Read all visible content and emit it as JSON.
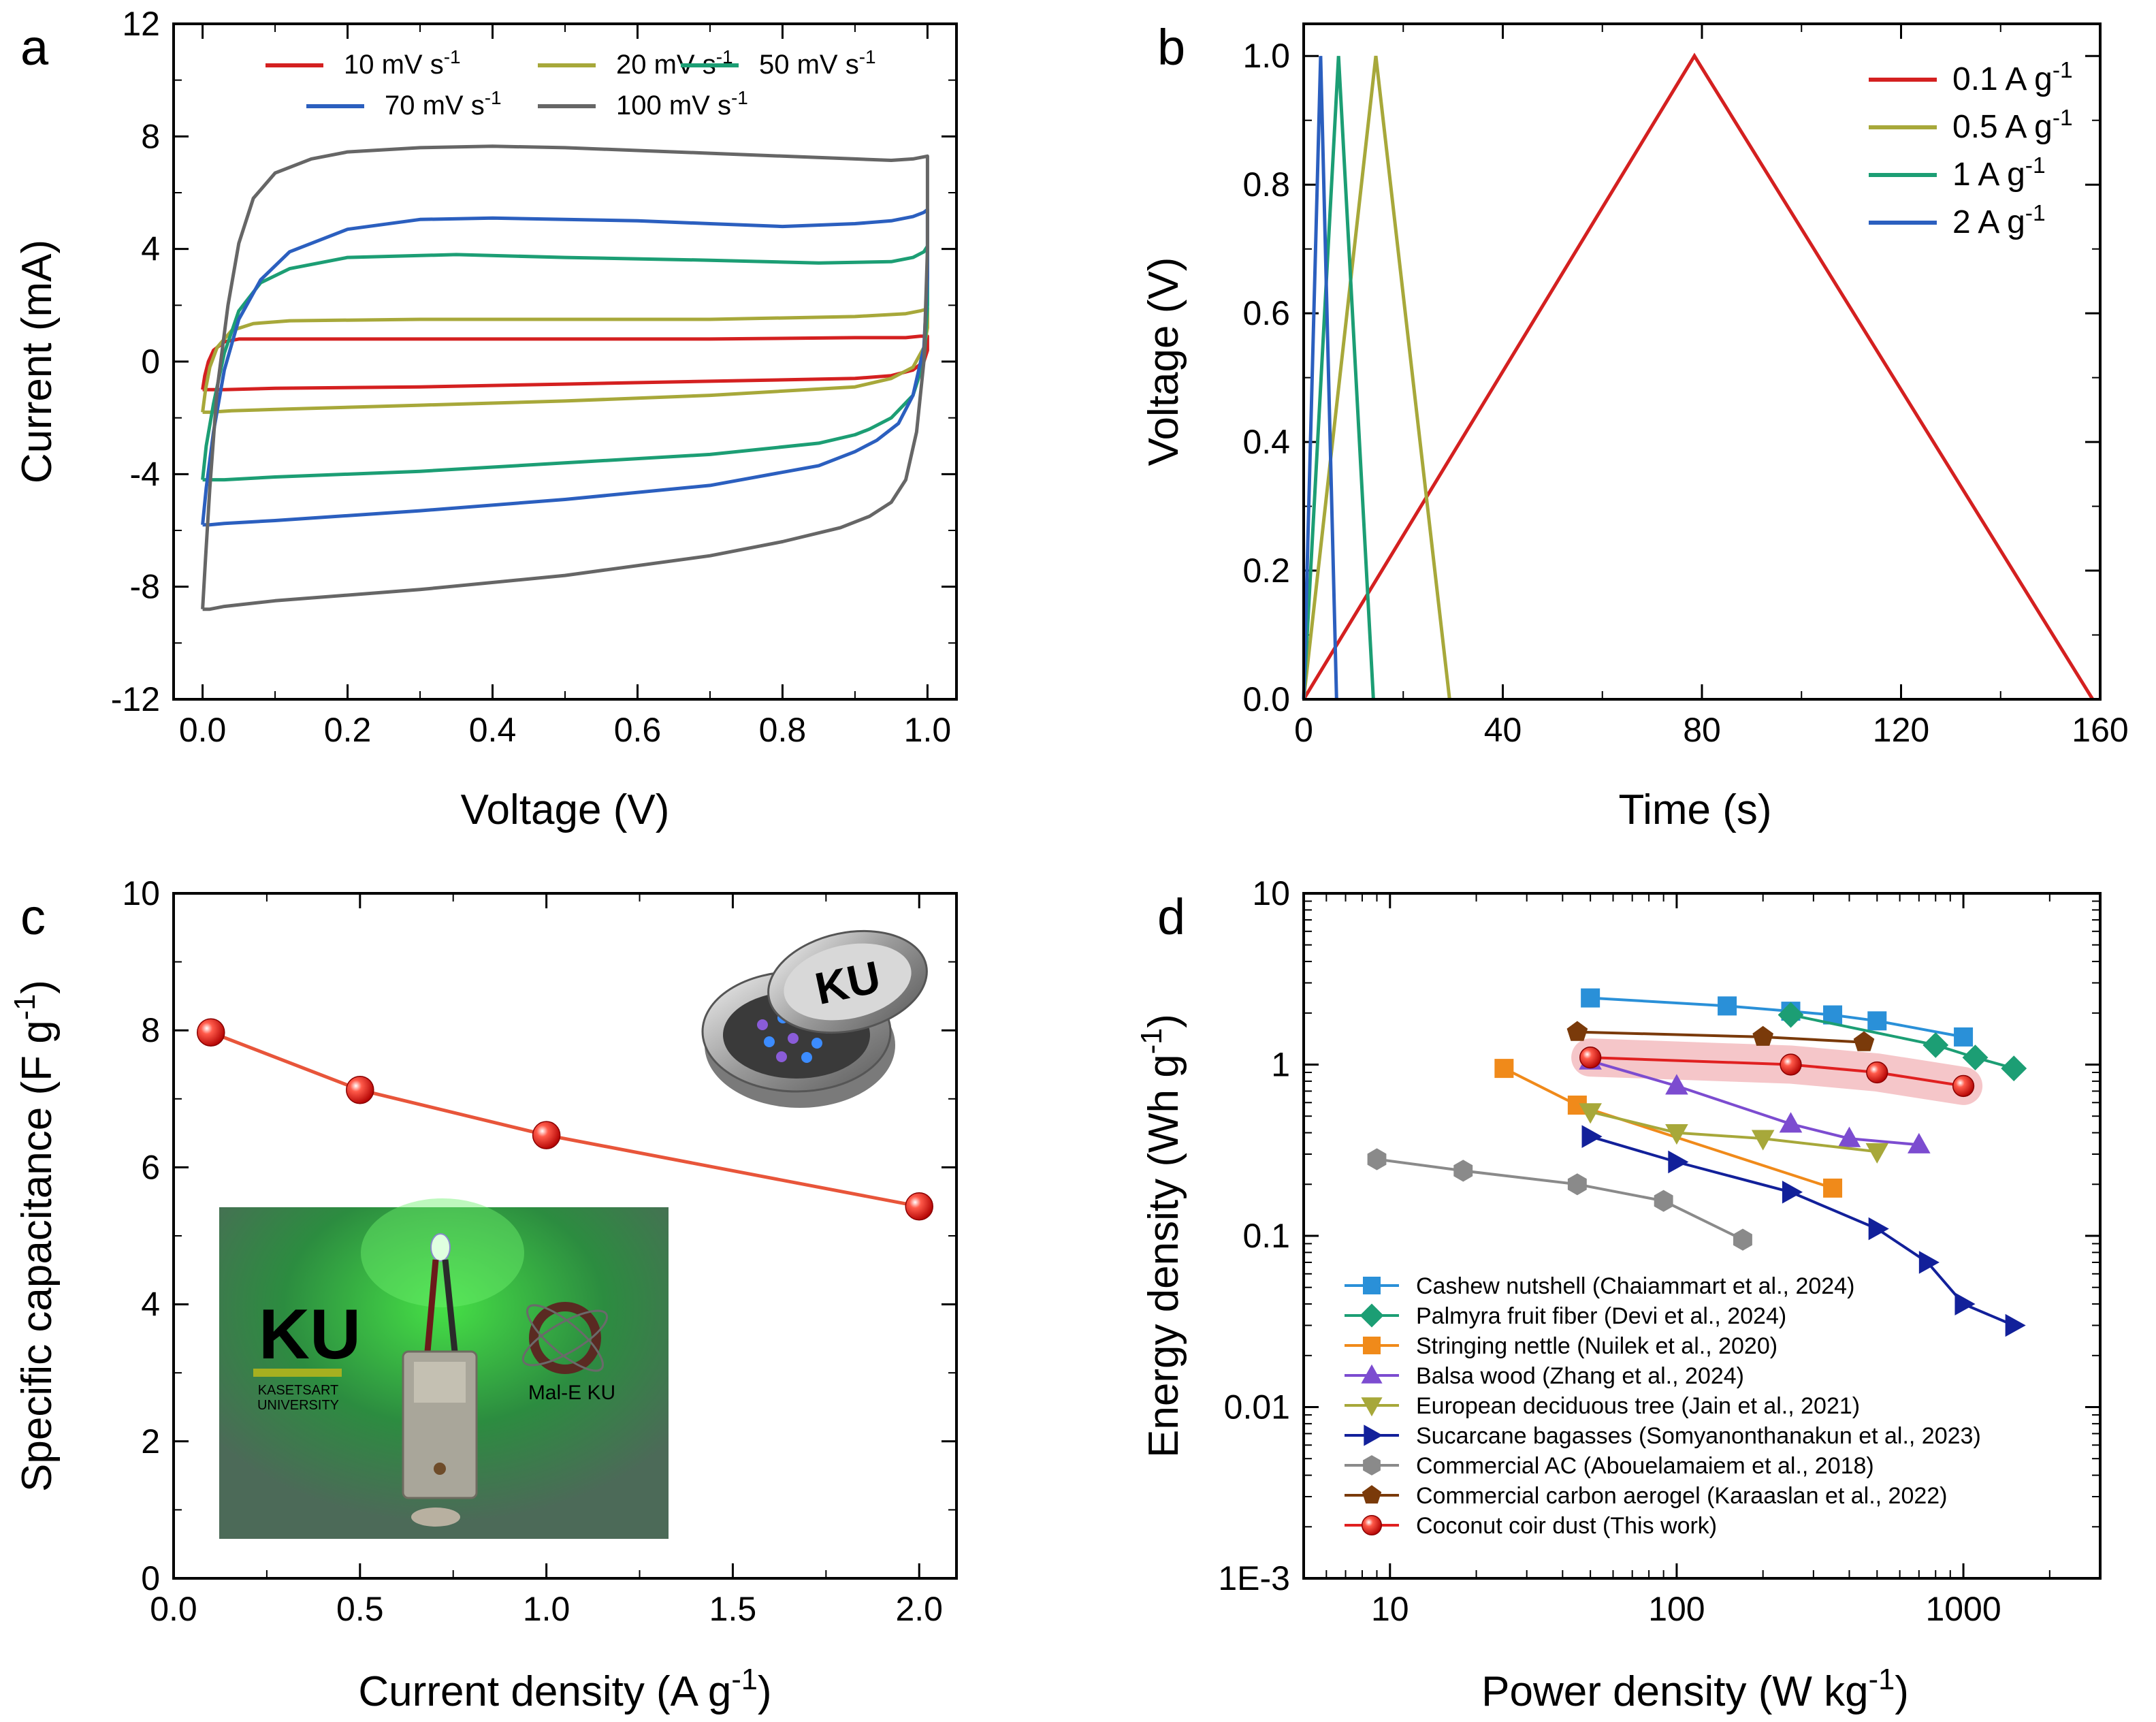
{
  "figure": {
    "panels": [
      "a",
      "b",
      "c",
      "d"
    ]
  },
  "chart_data": [
    {
      "id": "a",
      "type": "line",
      "panel_label": "a",
      "xlabel": "Voltage (V)",
      "ylabel": "Current (mA)",
      "xlim": [
        -0.04,
        1.04
      ],
      "ylim": [
        -12,
        12
      ],
      "xticks": [
        0.0,
        0.2,
        0.4,
        0.6,
        0.8,
        1.0
      ],
      "xtick_labels": [
        "0.0",
        "0.2",
        "0.4",
        "0.6",
        "0.8",
        "1.0"
      ],
      "yticks": [
        -12,
        -8,
        -4,
        0,
        4,
        8,
        12
      ],
      "ytick_labels": [
        "-12",
        "-8",
        "-4",
        "0",
        "4",
        "8",
        "12"
      ],
      "legend_position": "top",
      "series": [
        {
          "name": "10 mV s",
          "sup": "-1",
          "color": "#d42020",
          "x": [
            0.0,
            0.003,
            0.008,
            0.015,
            0.03,
            0.05,
            0.1,
            0.3,
            0.5,
            0.7,
            0.9,
            0.97,
            0.99,
            0.998,
            1.0,
            1.0,
            0.995,
            0.98,
            0.95,
            0.9,
            0.7,
            0.5,
            0.3,
            0.1,
            0.03,
            0.01,
            0.003,
            0.0,
            0.0
          ],
          "y": [
            -1.0,
            -0.5,
            0.0,
            0.4,
            0.7,
            0.8,
            0.8,
            0.8,
            0.8,
            0.8,
            0.85,
            0.85,
            0.9,
            0.9,
            0.9,
            0.4,
            0.0,
            -0.3,
            -0.5,
            -0.6,
            -0.7,
            -0.8,
            -0.9,
            -0.95,
            -1.0,
            -1.0,
            -1.0,
            -1.0,
            -1.0
          ]
        },
        {
          "name": "20 mV s",
          "sup": "-1",
          "color": "#a7a83a",
          "x": [
            0.0,
            0.004,
            0.01,
            0.02,
            0.04,
            0.07,
            0.12,
            0.3,
            0.5,
            0.7,
            0.9,
            0.97,
            0.99,
            0.997,
            1.0,
            1.0,
            0.995,
            0.98,
            0.95,
            0.9,
            0.7,
            0.5,
            0.3,
            0.1,
            0.04,
            0.01,
            0.003,
            0.0,
            0.0
          ],
          "y": [
            -1.8,
            -1.0,
            -0.2,
            0.5,
            1.1,
            1.35,
            1.45,
            1.5,
            1.5,
            1.5,
            1.6,
            1.7,
            1.8,
            1.85,
            1.9,
            1.2,
            0.5,
            -0.2,
            -0.6,
            -0.9,
            -1.2,
            -1.4,
            -1.55,
            -1.7,
            -1.75,
            -1.8,
            -1.8,
            -1.8,
            -1.8
          ]
        },
        {
          "name": "50 mV s",
          "sup": "-1",
          "color": "#1c9e74",
          "x": [
            0.0,
            0.005,
            0.015,
            0.03,
            0.05,
            0.08,
            0.12,
            0.2,
            0.35,
            0.5,
            0.7,
            0.85,
            0.95,
            0.98,
            0.995,
            1.0,
            1.0,
            0.995,
            0.98,
            0.95,
            0.92,
            0.9,
            0.85,
            0.7,
            0.5,
            0.3,
            0.1,
            0.03,
            0.01,
            0.0,
            0.0
          ],
          "y": [
            -4.2,
            -3.0,
            -1.5,
            0.3,
            1.8,
            2.8,
            3.3,
            3.7,
            3.8,
            3.7,
            3.6,
            3.5,
            3.55,
            3.7,
            3.9,
            4.1,
            2.0,
            0.0,
            -1.2,
            -2.0,
            -2.4,
            -2.6,
            -2.9,
            -3.3,
            -3.6,
            -3.9,
            -4.1,
            -4.2,
            -4.2,
            -4.2,
            -4.2
          ]
        },
        {
          "name": "70 mV s",
          "sup": "-1",
          "color": "#2b5fbf",
          "x": [
            0.0,
            0.005,
            0.015,
            0.03,
            0.05,
            0.08,
            0.12,
            0.2,
            0.3,
            0.4,
            0.5,
            0.6,
            0.7,
            0.8,
            0.9,
            0.95,
            0.98,
            0.995,
            1.0,
            1.0,
            0.995,
            0.98,
            0.96,
            0.93,
            0.9,
            0.85,
            0.7,
            0.5,
            0.3,
            0.1,
            0.03,
            0.01,
            0.0,
            0.0
          ],
          "y": [
            -5.8,
            -4.5,
            -2.5,
            -0.3,
            1.5,
            2.9,
            3.9,
            4.7,
            5.05,
            5.1,
            5.05,
            5.0,
            4.9,
            4.8,
            4.9,
            5.0,
            5.15,
            5.3,
            5.4,
            3.0,
            0.5,
            -1.2,
            -2.2,
            -2.8,
            -3.2,
            -3.7,
            -4.4,
            -4.9,
            -5.3,
            -5.65,
            -5.75,
            -5.8,
            -5.8,
            -5.8
          ]
        },
        {
          "name": "100 mV s",
          "sup": "-1",
          "color": "#666666",
          "x": [
            0.0,
            0.004,
            0.01,
            0.02,
            0.035,
            0.05,
            0.07,
            0.1,
            0.15,
            0.2,
            0.3,
            0.4,
            0.5,
            0.6,
            0.7,
            0.8,
            0.9,
            0.95,
            0.98,
            1.0,
            1.0,
            0.995,
            0.985,
            0.97,
            0.95,
            0.92,
            0.88,
            0.8,
            0.7,
            0.5,
            0.3,
            0.1,
            0.03,
            0.01,
            0.0,
            0.0
          ],
          "y": [
            -8.8,
            -7.0,
            -4.5,
            -1.0,
            2.0,
            4.2,
            5.8,
            6.7,
            7.2,
            7.45,
            7.6,
            7.65,
            7.6,
            7.5,
            7.4,
            7.3,
            7.2,
            7.15,
            7.2,
            7.3,
            4.0,
            0.0,
            -2.5,
            -4.2,
            -5.0,
            -5.5,
            -5.9,
            -6.4,
            -6.9,
            -7.6,
            -8.1,
            -8.5,
            -8.7,
            -8.8,
            -8.8,
            -8.8
          ]
        }
      ]
    },
    {
      "id": "b",
      "type": "line",
      "panel_label": "b",
      "xlabel": "Time (s)",
      "ylabel": "Voltage (V)",
      "xlim": [
        0,
        160
      ],
      "ylim": [
        0,
        1.05
      ],
      "xticks": [
        0,
        40,
        80,
        120,
        160
      ],
      "xtick_labels": [
        "0",
        "40",
        "80",
        "120",
        "160"
      ],
      "yticks": [
        0.0,
        0.2,
        0.4,
        0.6,
        0.8,
        1.0
      ],
      "ytick_labels": [
        "0.0",
        "0.2",
        "0.4",
        "0.6",
        "0.8",
        "1.0"
      ],
      "legend_position": "top-right",
      "series": [
        {
          "name": "0.1 A g",
          "sup": "-1",
          "color": "#d42020",
          "x": [
            0,
            78.5,
            158.5
          ],
          "y": [
            0.0,
            1.0,
            0.0
          ]
        },
        {
          "name": "0.5 A g",
          "sup": "-1",
          "color": "#a7a83a",
          "x": [
            0,
            14.5,
            29.3
          ],
          "y": [
            0.0,
            1.0,
            0.0
          ]
        },
        {
          "name": "1 A g",
          "sup": "-1",
          "color": "#1c9e74",
          "x": [
            0,
            7.0,
            14.0
          ],
          "y": [
            0.0,
            1.0,
            0.0
          ]
        },
        {
          "name": "2 A g",
          "sup": "-1",
          "color": "#2b5fbf",
          "x": [
            0,
            3.4,
            6.6
          ],
          "y": [
            0.0,
            1.0,
            0.0
          ]
        }
      ]
    },
    {
      "id": "c",
      "type": "scatter",
      "panel_label": "c",
      "xlabel": "Current density (A g",
      "xlabel_sup": "-1",
      "xlabel_end": ")",
      "ylabel": "Specific capacitance (F g",
      "ylabel_sup": "-1",
      "ylabel_end": ")",
      "xlim": [
        0.0,
        2.1
      ],
      "ylim": [
        0,
        10
      ],
      "xticks": [
        0.0,
        0.5,
        1.0,
        1.5,
        2.0
      ],
      "xtick_labels": [
        "0.0",
        "0.5",
        "1.0",
        "1.5",
        "2.0"
      ],
      "yticks": [
        0,
        2,
        4,
        6,
        8,
        10
      ],
      "ytick_labels": [
        "0",
        "2",
        "4",
        "6",
        "8",
        "10"
      ],
      "series": [
        {
          "name": "Specific capacitance",
          "color": "#e8553a",
          "marker_color": "#e02020",
          "x": [
            0.1,
            0.5,
            1.0,
            2.0
          ],
          "y": [
            7.97,
            7.13,
            6.47,
            5.43
          ]
        }
      ],
      "inset_photo": {
        "logo_text": "KU",
        "university_line1": "KASETSART",
        "university_line2": "UNIVERSITY",
        "lab_logo": "Mal-E KU",
        "glow_color": "#3ccc3c"
      },
      "coin_cell_text": "KU"
    },
    {
      "id": "d",
      "type": "scatter",
      "panel_label": "d",
      "xlabel": "Power density (W kg",
      "xlabel_sup": "-1",
      "xlabel_end": ")",
      "ylabel": "Energy density (Wh g",
      "ylabel_sup": "-1",
      "ylabel_end": ")",
      "xscale": "log",
      "yscale": "log",
      "xlim": [
        5,
        3000
      ],
      "ylim": [
        0.001,
        10
      ],
      "xticks": [
        10,
        100,
        1000
      ],
      "xtick_labels": [
        "10",
        "100",
        "1000"
      ],
      "yticks": [
        0.001,
        0.01,
        0.1,
        1,
        10
      ],
      "ytick_labels": [
        "1E-3",
        "0.01",
        "0.1",
        "1",
        "10"
      ],
      "legend_position": "bottom-left",
      "series": [
        {
          "name": "Cashew nutshell (Chaiammart et al., 2024)",
          "color": "#2a90d8",
          "marker": "square",
          "x": [
            50,
            150,
            250,
            350,
            500,
            1000
          ],
          "y": [
            2.45,
            2.2,
            2.05,
            1.95,
            1.8,
            1.45
          ]
        },
        {
          "name": "Palmyra fruit fiber (Devi et al., 2024)",
          "color": "#1c9e74",
          "marker": "diamond",
          "x": [
            250,
            800,
            1100,
            1500
          ],
          "y": [
            1.95,
            1.3,
            1.1,
            0.95
          ]
        },
        {
          "name": "Stringing nettle (Nuilek et al., 2020)",
          "color": "#f08a1a",
          "marker": "square",
          "x": [
            25,
            45,
            350
          ],
          "y": [
            0.95,
            0.58,
            0.19
          ]
        },
        {
          "name": "Balsa wood (Zhang et al., 2024)",
          "color": "#7c4cd0",
          "marker": "triangle-up",
          "x": [
            50,
            100,
            250,
            400,
            700
          ],
          "y": [
            1.05,
            0.75,
            0.45,
            0.37,
            0.34
          ]
        },
        {
          "name": "European deciduous tree (Jain et al., 2021)",
          "color": "#a7a83a",
          "marker": "triangle-down",
          "x": [
            50,
            100,
            200,
            500
          ],
          "y": [
            0.53,
            0.4,
            0.37,
            0.31
          ]
        },
        {
          "name": "Sucarcane bagasses (Somyanonthanakun et al., 2023)",
          "color": "#12209a",
          "marker": "triangle-right",
          "x": [
            50,
            100,
            250,
            500,
            750,
            1000,
            1500
          ],
          "y": [
            0.38,
            0.27,
            0.18,
            0.11,
            0.07,
            0.04,
            0.03
          ]
        },
        {
          "name": "Commercial AC (Abouelamaiem et al., 2018)",
          "color": "#8a8a8a",
          "marker": "hexagon",
          "x": [
            9,
            18,
            45,
            90,
            170
          ],
          "y": [
            0.28,
            0.24,
            0.2,
            0.16,
            0.095
          ]
        },
        {
          "name": "Commercial carbon aerogel (Karaaslan et al., 2022)",
          "color": "#7a3a0a",
          "marker": "pentagon",
          "x": [
            45,
            200,
            450
          ],
          "y": [
            1.55,
            1.45,
            1.35
          ]
        },
        {
          "name": "Coconut coir dust (This work)",
          "color": "#e02020",
          "marker": "circle",
          "x": [
            50,
            250,
            500,
            1000
          ],
          "y": [
            1.1,
            1.0,
            0.9,
            0.75
          ]
        }
      ]
    }
  ]
}
